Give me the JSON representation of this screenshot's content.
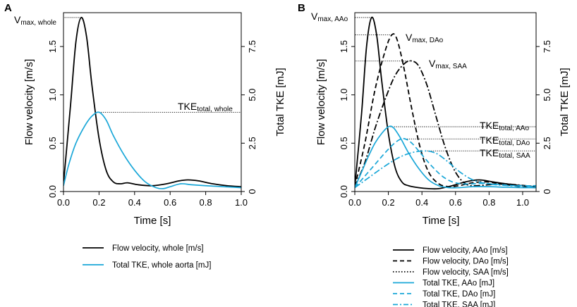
{
  "chart_data": [
    {
      "type": "line",
      "panel_label": "A",
      "xlabel": "Time [s]",
      "ylabel_left": "Flow velocity [m/s]",
      "ylabel_right": "Total TKE [mJ]",
      "xlim": [
        0,
        1.0
      ],
      "ylim_left": [
        0,
        1.85
      ],
      "ylim_right": [
        0,
        9.25
      ],
      "x_ticks": [
        "0.0",
        "0.2",
        "0.4",
        "0.6",
        "0.8",
        "1.0"
      ],
      "x_tick_values": [
        0,
        0.2,
        0.4,
        0.6,
        0.8,
        1.0
      ],
      "y_left_ticks": [
        "0.0",
        "0.5",
        "1.0",
        "1.5"
      ],
      "y_left_tick_values": [
        0,
        0.5,
        1.0,
        1.5
      ],
      "y_right_ticks": [
        "0",
        "2.5",
        "5.0",
        "7.5"
      ],
      "y_right_tick_values": [
        0,
        2.5,
        5.0,
        7.5
      ],
      "series": [
        {
          "name": "Flow velocity, whole [m/s]",
          "axis": "left",
          "color": "#000000",
          "dash": "solid",
          "x": [
            0,
            0.04,
            0.07,
            0.1,
            0.13,
            0.16,
            0.2,
            0.24,
            0.28,
            0.32,
            0.36,
            0.42,
            0.5,
            0.58,
            0.65,
            0.7,
            0.76,
            0.84,
            0.92,
            1.0
          ],
          "y": [
            0.08,
            0.9,
            1.55,
            1.8,
            1.6,
            1.1,
            0.55,
            0.22,
            0.1,
            0.08,
            0.09,
            0.07,
            0.06,
            0.08,
            0.11,
            0.12,
            0.11,
            0.08,
            0.06,
            0.05
          ]
        },
        {
          "name": "Total TKE, whole aorta [mJ]",
          "axis": "right",
          "color": "#1aa7d8",
          "dash": "solid",
          "x": [
            0,
            0.03,
            0.07,
            0.12,
            0.16,
            0.2,
            0.24,
            0.28,
            0.34,
            0.4,
            0.46,
            0.52,
            0.56,
            0.6,
            0.66,
            0.72,
            0.8,
            0.9,
            1.0
          ],
          "y": [
            0.3,
            1.4,
            2.5,
            3.4,
            3.9,
            4.1,
            3.7,
            2.9,
            1.9,
            1.1,
            0.5,
            0.2,
            0.15,
            0.25,
            0.4,
            0.35,
            0.3,
            0.25,
            0.2
          ]
        }
      ],
      "annotations": [
        {
          "base": "V",
          "sub": "max, whole",
          "ref_x": 0.1,
          "ref_y": 1.8,
          "axis": "left"
        },
        {
          "base": "TKE",
          "sub": "total, whole",
          "ref_x": 0.2,
          "ref_y": 4.1,
          "axis": "right"
        }
      ]
    },
    {
      "type": "line",
      "panel_label": "B",
      "xlabel": "Time [s]",
      "ylabel_left": "Flow velocity [m/s]",
      "ylabel_right": "Total TKE [mJ]",
      "xlim": [
        0,
        1.08
      ],
      "ylim_left": [
        0,
        1.85
      ],
      "ylim_right": [
        0,
        9.25
      ],
      "x_ticks": [
        "0.0",
        "0.2",
        "0.4",
        "0.6",
        "0.8",
        "1.0"
      ],
      "x_tick_values": [
        0,
        0.2,
        0.4,
        0.6,
        0.8,
        1.0
      ],
      "y_left_ticks": [
        "0.0",
        "0.5",
        "1.0",
        "1.5"
      ],
      "y_left_tick_values": [
        0,
        0.5,
        1.0,
        1.5
      ],
      "y_right_ticks": [
        "0",
        "2.5",
        "5.0",
        "7.5"
      ],
      "y_right_tick_values": [
        0,
        2.5,
        5.0,
        7.5
      ],
      "series": [
        {
          "name": "Flow velocity, AAo [m/s]",
          "axis": "left",
          "color": "#000000",
          "dash": "solid",
          "x": [
            0,
            0.04,
            0.07,
            0.1,
            0.13,
            0.16,
            0.2,
            0.24,
            0.28,
            0.32,
            0.38,
            0.44,
            0.5,
            0.58,
            0.66,
            0.74,
            0.82,
            0.9,
            1.0,
            1.08
          ],
          "y": [
            0.05,
            0.8,
            1.5,
            1.8,
            1.62,
            1.15,
            0.6,
            0.25,
            0.1,
            0.06,
            0.04,
            0.03,
            0.03,
            0.06,
            0.1,
            0.12,
            0.1,
            0.08,
            0.06,
            0.05
          ]
        },
        {
          "name": "Flow velocity, DAo [m/s]",
          "axis": "left",
          "color": "#000000",
          "dash": "dashed",
          "x": [
            0,
            0.06,
            0.12,
            0.18,
            0.22,
            0.25,
            0.29,
            0.34,
            0.39,
            0.44,
            0.5,
            0.56,
            0.62,
            0.7,
            0.78,
            0.86,
            0.94,
            1.0,
            1.08
          ],
          "y": [
            0.05,
            0.5,
            1.05,
            1.45,
            1.62,
            1.58,
            1.3,
            0.85,
            0.45,
            0.2,
            0.08,
            0.05,
            0.06,
            0.09,
            0.1,
            0.08,
            0.06,
            0.05,
            0.04
          ]
        },
        {
          "name": "Flow velocity, SAA [m/s]",
          "axis": "left",
          "color": "#000000",
          "dash": "dashdot",
          "x": [
            0,
            0.06,
            0.12,
            0.18,
            0.24,
            0.3,
            0.34,
            0.38,
            0.43,
            0.48,
            0.54,
            0.6,
            0.66,
            0.72,
            0.8,
            0.88,
            0.96,
            1.02,
            1.08
          ],
          "y": [
            0.05,
            0.3,
            0.65,
            0.95,
            1.2,
            1.33,
            1.35,
            1.3,
            1.1,
            0.8,
            0.45,
            0.2,
            0.08,
            0.06,
            0.07,
            0.08,
            0.07,
            0.06,
            0.05
          ]
        },
        {
          "name": "Total TKE, AAo [mJ]",
          "axis": "right",
          "color": "#1aa7d8",
          "dash": "solid",
          "x": [
            0,
            0.04,
            0.08,
            0.12,
            0.16,
            0.2,
            0.23,
            0.27,
            0.32,
            0.38,
            0.44,
            0.5,
            0.56,
            0.62,
            0.7,
            0.8,
            0.9,
            1.0,
            1.08
          ],
          "y": [
            0.2,
            1.0,
            1.8,
            2.5,
            3.0,
            3.35,
            3.3,
            2.8,
            2.0,
            1.2,
            0.6,
            0.3,
            0.2,
            0.2,
            0.25,
            0.25,
            0.22,
            0.2,
            0.2
          ]
        },
        {
          "name": "Total TKE, DAo [mJ]",
          "axis": "right",
          "color": "#1aa7d8",
          "dash": "dashed",
          "x": [
            0,
            0.06,
            0.12,
            0.18,
            0.23,
            0.27,
            0.3,
            0.34,
            0.4,
            0.46,
            0.52,
            0.58,
            0.64,
            0.7,
            0.76,
            0.84,
            0.92,
            1.0,
            1.08
          ],
          "y": [
            0.2,
            0.8,
            1.4,
            2.0,
            2.45,
            2.7,
            2.72,
            2.5,
            1.9,
            1.3,
            0.8,
            0.5,
            0.4,
            0.4,
            0.42,
            0.38,
            0.32,
            0.3,
            0.3
          ]
        },
        {
          "name": "Total TKE, SAA [mJ]",
          "axis": "right",
          "color": "#1aa7d8",
          "dash": "dashdot",
          "x": [
            0,
            0.08,
            0.16,
            0.24,
            0.3,
            0.36,
            0.42,
            0.46,
            0.5,
            0.56,
            0.62,
            0.68,
            0.72,
            0.76,
            0.84,
            0.92,
            1.0,
            1.08
          ],
          "y": [
            0.2,
            0.7,
            1.2,
            1.65,
            1.9,
            2.05,
            2.1,
            2.05,
            1.9,
            1.5,
            1.05,
            0.7,
            0.55,
            0.45,
            0.35,
            0.3,
            0.28,
            0.25
          ]
        }
      ],
      "annotations": [
        {
          "base": "V",
          "sub": "max, AAo",
          "ref_x": 0.1,
          "ref_y": 1.8,
          "axis": "left"
        },
        {
          "base": "V",
          "sub": "max, DAo",
          "ref_x": 0.22,
          "ref_y": 1.62,
          "axis": "left"
        },
        {
          "base": "V",
          "sub": "max, SAA",
          "ref_x": 0.34,
          "ref_y": 1.35,
          "axis": "left"
        },
        {
          "base": "TKE",
          "sub": "total, AAo",
          "ref_x": 0.2,
          "ref_y": 3.35,
          "axis": "right"
        },
        {
          "base": "TKE",
          "sub": "total, DAo",
          "ref_x": 0.3,
          "ref_y": 2.72,
          "axis": "right"
        },
        {
          "base": "TKE",
          "sub": "total, SAA",
          "ref_x": 0.42,
          "ref_y": 2.1,
          "axis": "right"
        }
      ]
    }
  ]
}
